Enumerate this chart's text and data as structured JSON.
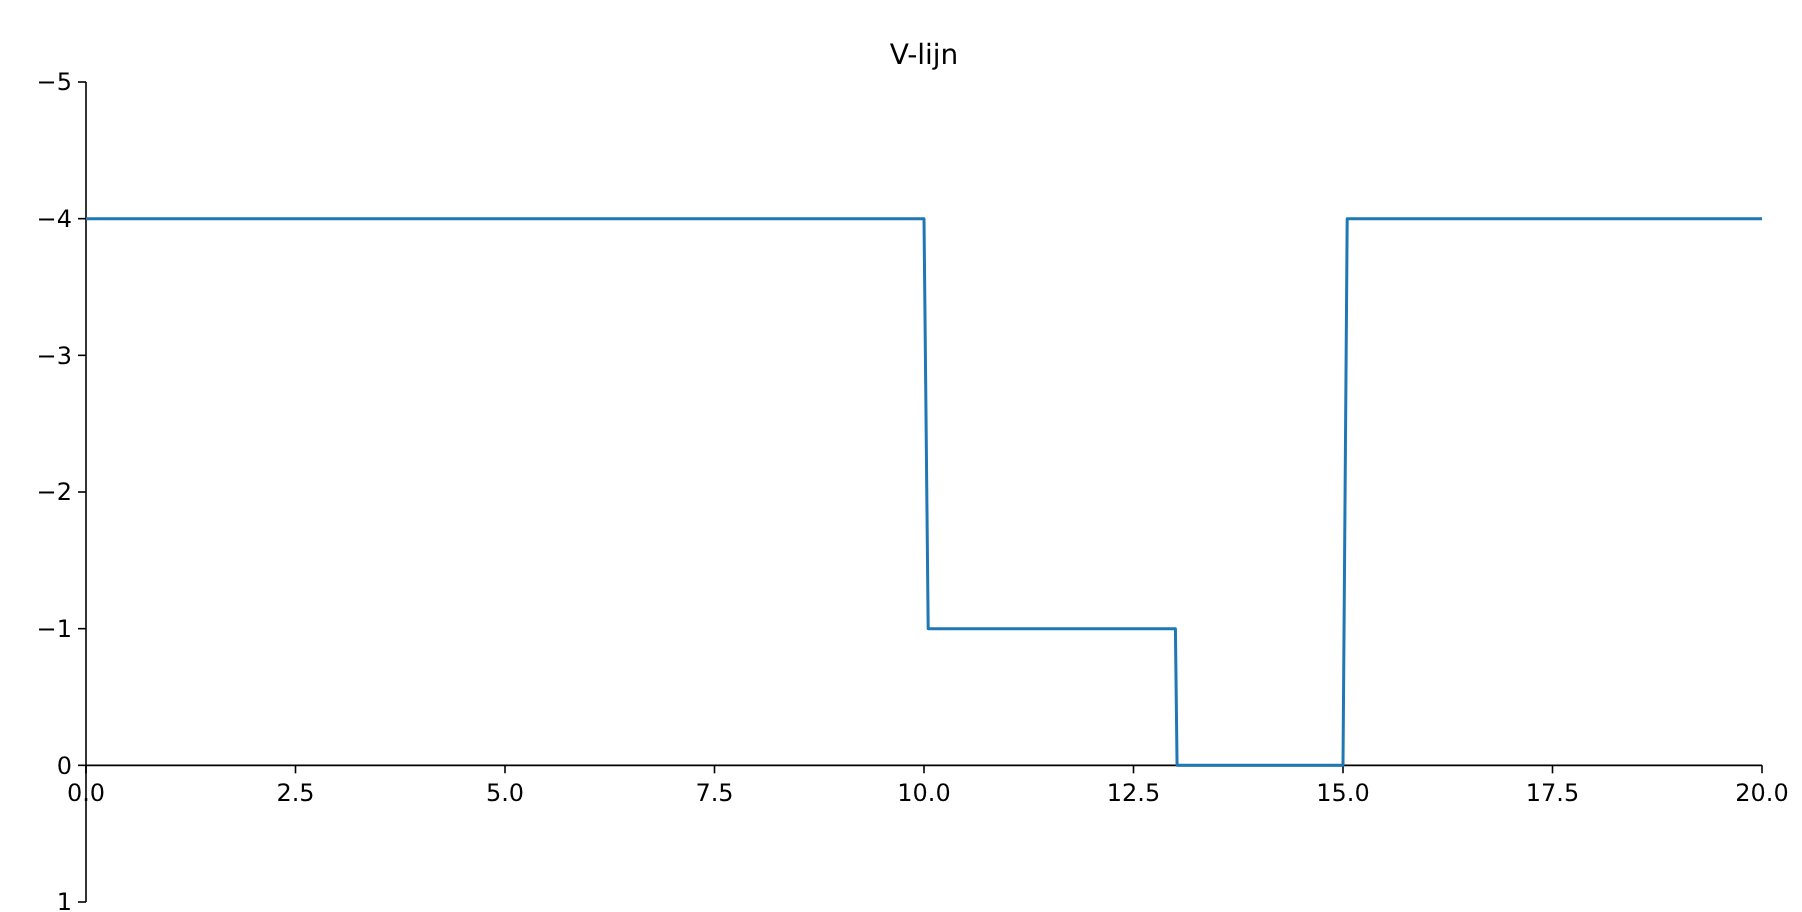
{
  "chart_data": {
    "type": "line",
    "title": "V-lijn",
    "x": [
      0,
      10,
      10.05,
      13,
      13.02,
      15,
      15.05,
      20
    ],
    "series": [
      {
        "color": "#1f77b4",
        "values": [
          -4,
          -4,
          -1,
          -1,
          0,
          0,
          -4,
          -4
        ]
      }
    ],
    "xlim": [
      0,
      20
    ],
    "xticks": [
      {
        "value": 0,
        "label": "0.0"
      },
      {
        "value": 2.5,
        "label": "2.5"
      },
      {
        "value": 5,
        "label": "5.0"
      },
      {
        "value": 7.5,
        "label": "7.5"
      },
      {
        "value": 10,
        "label": "10.0"
      },
      {
        "value": 12.5,
        "label": "12.5"
      },
      {
        "value": 15,
        "label": "15.0"
      },
      {
        "value": 17.5,
        "label": "17.5"
      },
      {
        "value": 20,
        "label": "20.0"
      }
    ],
    "ylim": [
      1,
      -5
    ],
    "yticks": [
      {
        "value": -5,
        "label": "−5"
      },
      {
        "value": -4,
        "label": "−4"
      },
      {
        "value": -3,
        "label": "−3"
      },
      {
        "value": -2,
        "label": "−2"
      },
      {
        "value": -1,
        "label": "−1"
      },
      {
        "value": 0,
        "label": "0"
      },
      {
        "value": 1,
        "label": "1"
      }
    ]
  }
}
